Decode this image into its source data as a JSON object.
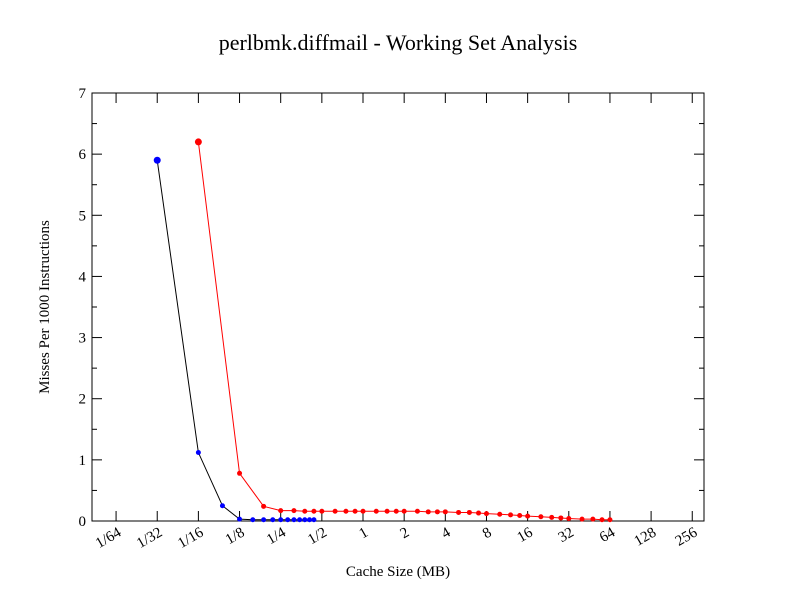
{
  "chart_data": {
    "type": "line",
    "title": "perlbmk.diffmail - Working Set Analysis",
    "xlabel": "Cache Size (MB)",
    "ylabel": "Misses Per 1000 Instructions",
    "x_scale": "log2",
    "xlim": [
      0.010417,
      312
    ],
    "ylim": [
      0,
      7
    ],
    "x_ticks": [
      {
        "value": 0.015625,
        "label": "1/64"
      },
      {
        "value": 0.03125,
        "label": "1/32"
      },
      {
        "value": 0.0625,
        "label": "1/16"
      },
      {
        "value": 0.125,
        "label": "1/8"
      },
      {
        "value": 0.25,
        "label": "1/4"
      },
      {
        "value": 0.5,
        "label": "1/2"
      },
      {
        "value": 1,
        "label": "1"
      },
      {
        "value": 2,
        "label": "2"
      },
      {
        "value": 4,
        "label": "4"
      },
      {
        "value": 8,
        "label": "8"
      },
      {
        "value": 16,
        "label": "16"
      },
      {
        "value": 32,
        "label": "32"
      },
      {
        "value": 64,
        "label": "64"
      },
      {
        "value": 128,
        "label": "128"
      },
      {
        "value": 256,
        "label": "256"
      }
    ],
    "y_ticks": [
      0,
      1,
      2,
      3,
      4,
      5,
      6,
      7
    ],
    "grid": false,
    "series": [
      {
        "color": "#ff0000",
        "line_color": "#ff0000",
        "x": [
          0.0625,
          0.125,
          0.1875,
          0.25,
          0.3125,
          0.375,
          0.4375,
          0.5,
          0.625,
          0.75,
          0.875,
          1,
          1.25,
          1.5,
          1.75,
          2,
          2.5,
          3,
          3.5,
          4,
          5,
          6,
          7,
          8,
          10,
          12,
          14,
          16,
          20,
          24,
          28,
          32,
          40,
          48,
          56,
          64
        ],
        "y": [
          6.2,
          0.78,
          0.24,
          0.17,
          0.17,
          0.16,
          0.16,
          0.16,
          0.16,
          0.16,
          0.16,
          0.16,
          0.16,
          0.16,
          0.16,
          0.16,
          0.16,
          0.15,
          0.15,
          0.15,
          0.14,
          0.14,
          0.13,
          0.12,
          0.11,
          0.1,
          0.09,
          0.08,
          0.07,
          0.06,
          0.05,
          0.04,
          0.03,
          0.03,
          0.02,
          0.02
        ]
      },
      {
        "color": "#0000ff",
        "line_color": "#000000",
        "x": [
          0.03125,
          0.0625,
          0.09375,
          0.125,
          0.15625,
          0.1875,
          0.21875,
          0.25,
          0.28125,
          0.3125,
          0.34375,
          0.375,
          0.40625,
          0.4375
        ],
        "y": [
          5.9,
          1.12,
          0.25,
          0.03,
          0.02,
          0.02,
          0.02,
          0.02,
          0.02,
          0.02,
          0.02,
          0.02,
          0.02,
          0.02
        ]
      }
    ]
  }
}
